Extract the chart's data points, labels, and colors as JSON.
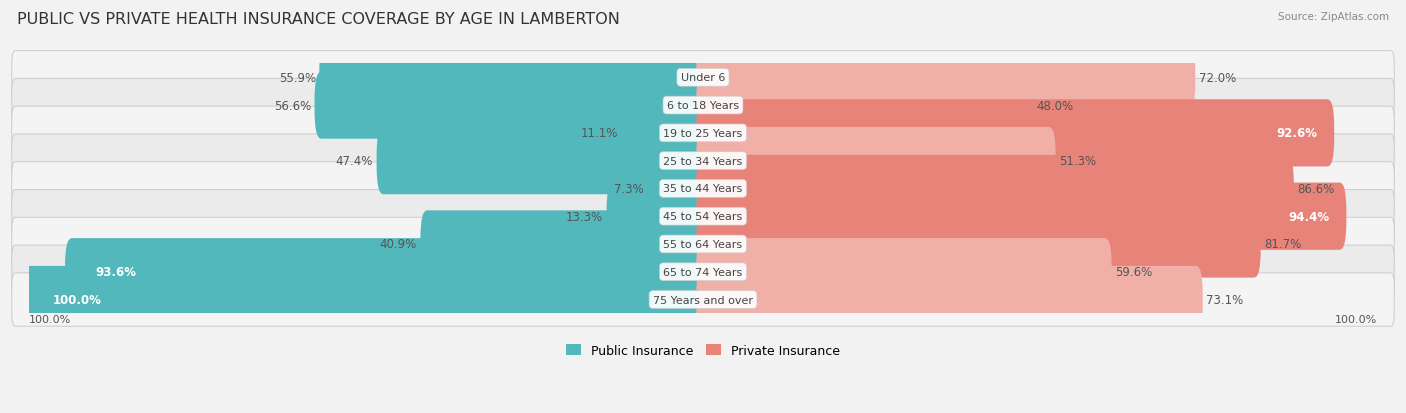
{
  "title": "PUBLIC VS PRIVATE HEALTH INSURANCE COVERAGE BY AGE IN LAMBERTON",
  "source": "Source: ZipAtlas.com",
  "categories": [
    "Under 6",
    "6 to 18 Years",
    "19 to 25 Years",
    "25 to 34 Years",
    "35 to 44 Years",
    "45 to 54 Years",
    "55 to 64 Years",
    "65 to 74 Years",
    "75 Years and over"
  ],
  "public_values": [
    55.9,
    56.6,
    11.1,
    47.4,
    7.3,
    13.3,
    40.9,
    93.6,
    100.0
  ],
  "private_values": [
    72.0,
    48.0,
    92.6,
    51.3,
    86.6,
    94.4,
    81.7,
    59.6,
    73.1
  ],
  "public_color": "#52b8bc",
  "private_color": "#e8837a",
  "private_color_light": "#f0b0a8",
  "public_label": "Public Insurance",
  "private_label": "Private Insurance",
  "bar_height": 0.42,
  "row_bg_colors": [
    "#f4f4f4",
    "#ebebeb"
  ],
  "max_val": 100.0,
  "title_fontsize": 11.5,
  "value_fontsize": 8.5,
  "cat_fontsize": 8.0
}
